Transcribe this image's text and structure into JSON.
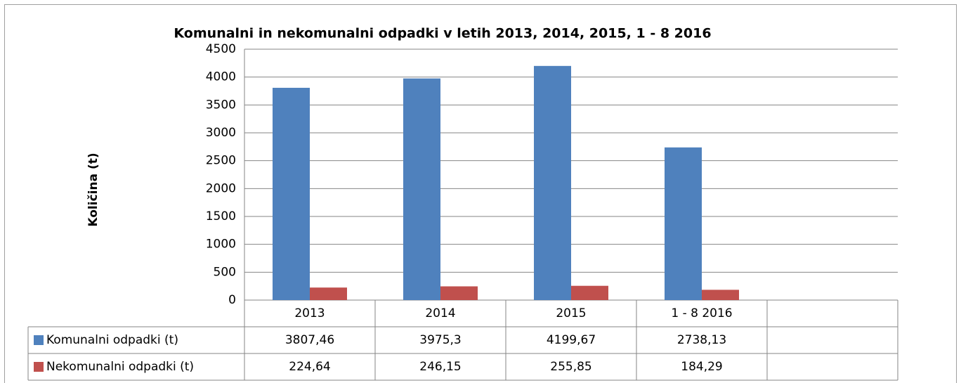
{
  "chart_data": {
    "type": "bar",
    "title": "Komunalni in nekomunalni odpadki v letih 2013, 2014,  2015, 1 - 8 2016",
    "y_label": "Količina (t)",
    "categories": [
      "2013",
      "2014",
      "2015",
      "1 - 8 2016",
      null
    ],
    "series": [
      {
        "name": "Komunalni odpadki (t)",
        "color": "#4f81bd",
        "values": [
          3807.46,
          3975.3,
          4199.67,
          2738.13,
          null
        ],
        "value_labels": [
          "3807,46",
          "3975,3",
          "4199,67",
          "2738,13",
          null
        ]
      },
      {
        "name": "Nekomunalni odpadki (t)",
        "color": "#c0504d",
        "values": [
          224.64,
          246.15,
          255.85,
          184.29,
          null
        ],
        "value_labels": [
          "224,64",
          "246,15",
          "255,85",
          "184,29",
          null
        ]
      }
    ],
    "ylim": [
      0,
      4500
    ],
    "yticks": [
      0,
      500,
      1000,
      1500,
      2000,
      2500,
      3000,
      3500,
      4000,
      4500
    ],
    "grid": true
  }
}
